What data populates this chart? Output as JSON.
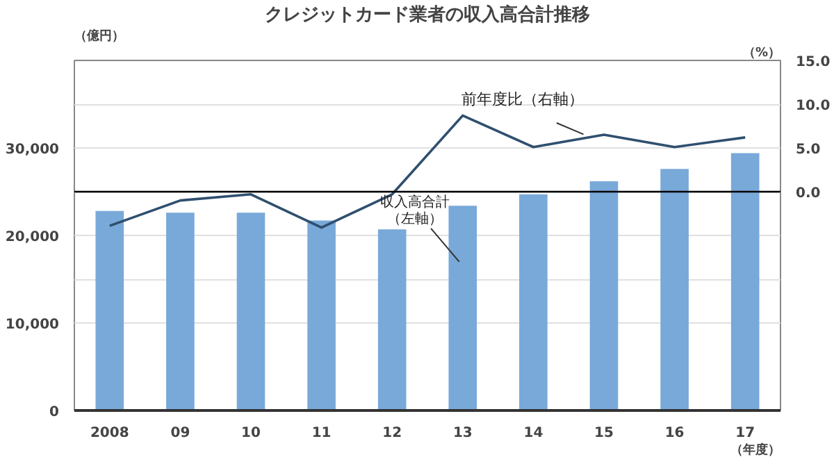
{
  "chart_data": {
    "type": "bar",
    "title": "クレジットカード業者の収入高合計推移",
    "ylabel": "（億円）",
    "y2label": "（%）",
    "xlabel": "（年度）",
    "categories": [
      "2008",
      "09",
      "10",
      "11",
      "12",
      "13",
      "14",
      "15",
      "16",
      "17"
    ],
    "series": [
      {
        "name": "収入高合計（左軸）",
        "color": "#79a9d9",
        "values": [
          22800,
          22600,
          22600,
          21700,
          20700,
          23400,
          24700,
          26200,
          27600,
          29400
        ]
      },
      {
        "name": "前年度比（右軸）",
        "type": "line",
        "axis": "y2",
        "color": "#2f4f6f",
        "values": [
          -3.9,
          -1.0,
          -0.3,
          -4.1,
          -0.3,
          8.7,
          5.1,
          6.5,
          5.1,
          6.2
        ]
      }
    ],
    "ylim": [
      0,
      40000
    ],
    "yticks": [
      0,
      {
        "value": 10000,
        "label": "10,000"
      },
      {
        "value": 15000,
        "label": null
      },
      {
        "value": 20000,
        "label": "20,000"
      },
      {
        "value": 25000,
        "label": null
      },
      {
        "value": 30000,
        "label": "30,000"
      },
      {
        "value": 35000,
        "label": null
      }
    ],
    "y2lim": [
      -25,
      15
    ],
    "y2ticks": [
      {
        "value": 0,
        "label": "0.0"
      },
      {
        "value": 5,
        "label": "5.0"
      },
      {
        "value": 10,
        "label": "10.0"
      },
      {
        "value": 15,
        "label": "15.0"
      }
    ],
    "ref_lines": [
      {
        "axis": "y2",
        "value": 0,
        "color": "#000000"
      }
    ],
    "grid": "y",
    "legend": false
  }
}
